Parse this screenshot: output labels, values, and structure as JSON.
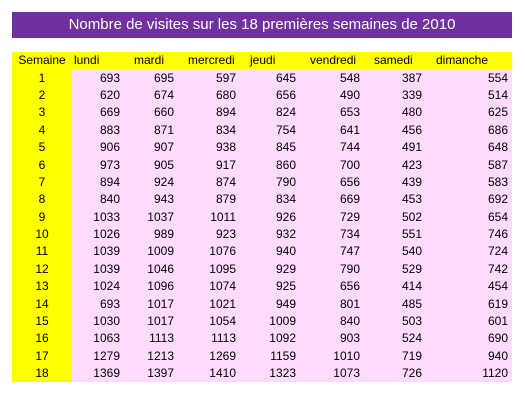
{
  "title": "Nombre de visites sur les 18 premières semaines de 2010",
  "colors": {
    "title_bg": "#7030a0",
    "header_bg": "#ffff00",
    "cell_bg": "#ffdcff"
  },
  "table": {
    "headers": [
      "Semaine",
      "lundi",
      "mardi",
      "mercredi",
      "jeudi",
      "vendredi",
      "samedi",
      "dimanche"
    ],
    "rows": [
      [
        "1",
        "693",
        "695",
        "597",
        "645",
        "548",
        "387",
        "554"
      ],
      [
        "2",
        "620",
        "674",
        "680",
        "656",
        "490",
        "339",
        "514"
      ],
      [
        "3",
        "669",
        "660",
        "894",
        "824",
        "653",
        "480",
        "625"
      ],
      [
        "4",
        "883",
        "871",
        "834",
        "754",
        "641",
        "456",
        "686"
      ],
      [
        "5",
        "906",
        "907",
        "938",
        "845",
        "744",
        "491",
        "648"
      ],
      [
        "6",
        "973",
        "905",
        "917",
        "860",
        "700",
        "423",
        "587"
      ],
      [
        "7",
        "894",
        "924",
        "874",
        "790",
        "656",
        "439",
        "583"
      ],
      [
        "8",
        "840",
        "943",
        "879",
        "834",
        "669",
        "453",
        "692"
      ],
      [
        "9",
        "1033",
        "1037",
        "1011",
        "926",
        "729",
        "502",
        "654"
      ],
      [
        "10",
        "1026",
        "989",
        "923",
        "932",
        "734",
        "551",
        "746"
      ],
      [
        "11",
        "1039",
        "1009",
        "1076",
        "940",
        "747",
        "540",
        "724"
      ],
      [
        "12",
        "1039",
        "1046",
        "1095",
        "929",
        "790",
        "529",
        "742"
      ],
      [
        "13",
        "1024",
        "1096",
        "1074",
        "925",
        "656",
        "414",
        "454"
      ],
      [
        "14",
        "693",
        "1017",
        "1021",
        "949",
        "801",
        "485",
        "619"
      ],
      [
        "15",
        "1030",
        "1017",
        "1054",
        "1009",
        "840",
        "503",
        "601"
      ],
      [
        "16",
        "1063",
        "1113",
        "1113",
        "1092",
        "903",
        "524",
        "690"
      ],
      [
        "17",
        "1279",
        "1213",
        "1269",
        "1159",
        "1010",
        "719",
        "940"
      ],
      [
        "18",
        "1369",
        "1397",
        "1410",
        "1323",
        "1073",
        "726",
        "1120"
      ]
    ]
  }
}
